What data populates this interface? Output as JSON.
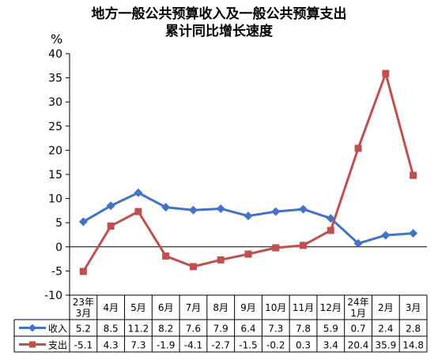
{
  "chart_data": {
    "type": "line",
    "title": "地方一般公共预算收入及一般公共预算支出",
    "subtitle": "累计同比增长速度",
    "ylabel": "%",
    "ylim": [
      -10,
      40
    ],
    "yticks": [
      40,
      35,
      30,
      25,
      20,
      15,
      10,
      5,
      0,
      -5,
      -10
    ],
    "grid": false,
    "legend": "data-table-left",
    "categories": [
      [
        "23年",
        "3月"
      ],
      [
        "4月"
      ],
      [
        "5月"
      ],
      [
        "6月"
      ],
      [
        "7月"
      ],
      [
        "8月"
      ],
      [
        "9月"
      ],
      [
        "10月"
      ],
      [
        "11月"
      ],
      [
        "12月"
      ],
      [
        "24年",
        "1月"
      ],
      [
        "2月"
      ],
      [
        "3月"
      ]
    ],
    "series": [
      {
        "name": "收入",
        "color": "#4472C4",
        "marker": "diamond",
        "values": [
          5.2,
          8.5,
          11.2,
          8.2,
          7.6,
          7.9,
          6.4,
          7.3,
          7.8,
          5.9,
          0.7,
          2.4,
          2.8
        ],
        "labels": [
          "5.2",
          "8.5",
          "11.2",
          "8.2",
          "7.6",
          "7.9",
          "6.4",
          "7.3",
          "7.8",
          "5.9",
          "0.7",
          "2.4",
          "2.8"
        ]
      },
      {
        "name": "支出",
        "color": "#C0504D",
        "marker": "square",
        "values": [
          -5.1,
          4.3,
          7.3,
          -1.9,
          -4.1,
          -2.7,
          -1.5,
          -0.2,
          0.3,
          3.4,
          20.4,
          35.9,
          14.8
        ],
        "labels": [
          "-5.1",
          "4.3",
          "7.3",
          "-1.9",
          "-4.1",
          "-2.7",
          "-1.5",
          "-0.2",
          "0.3",
          "3.4",
          "20.4",
          "35.9",
          "14.8"
        ]
      }
    ]
  }
}
